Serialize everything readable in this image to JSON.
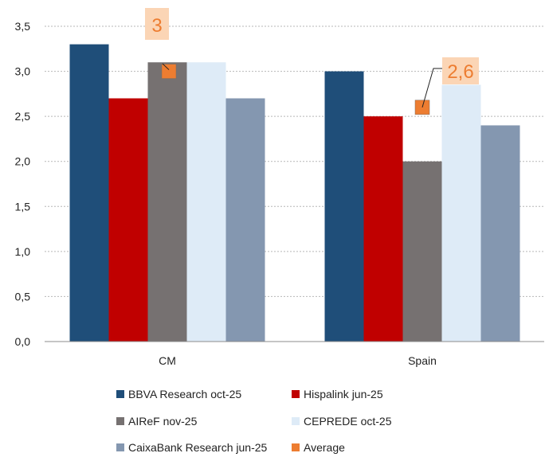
{
  "chart_data": {
    "type": "bar",
    "categories": [
      "CM",
      "Spain"
    ],
    "ylim": [
      0,
      3.5
    ],
    "yticks": [
      "0,0",
      "0,5",
      "1,0",
      "1,5",
      "2,0",
      "2,5",
      "3,0",
      "3,5"
    ],
    "grid": true,
    "legend_position": "bottom",
    "series": [
      {
        "name": "BBVA Research oct-25",
        "color": "#1F4E79",
        "values": [
          3.3,
          3.0
        ]
      },
      {
        "name": "Hispalink jun-25",
        "color": "#C00000",
        "values": [
          2.7,
          2.5
        ]
      },
      {
        "name": "AIReF nov-25",
        "color": "#767171",
        "values": [
          3.1,
          2.0
        ]
      },
      {
        "name": "CEPREDE oct-25",
        "color": "#DEEBF7",
        "values": [
          3.1,
          2.85
        ]
      },
      {
        "name": "CaixaBank Research jun-25",
        "color": "#8497B0",
        "values": [
          2.7,
          2.4
        ]
      }
    ],
    "average": {
      "name": "Average",
      "color": "#ED7D31",
      "values": [
        3.0,
        2.6
      ]
    },
    "annotations": [
      {
        "category": "CM",
        "text": "3"
      },
      {
        "category": "Spain",
        "text": "2,6"
      }
    ]
  }
}
